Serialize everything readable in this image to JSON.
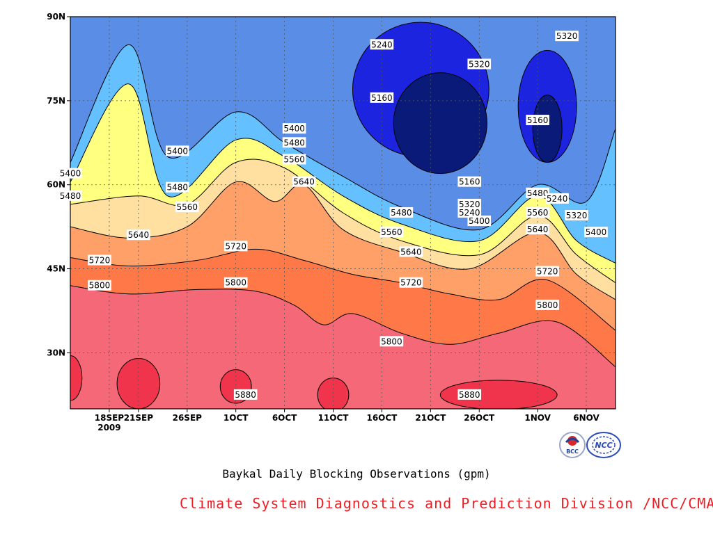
{
  "chart_data": {
    "type": "heatmap",
    "title": "",
    "xlabel": "",
    "ylabel": "",
    "x_range": [
      "2009-09-14",
      "2009-11-09"
    ],
    "ylim": [
      20,
      90
    ],
    "x_ticks": [
      {
        "date": "2009-09-18",
        "label": "18SEP",
        "sublabel": "2009"
      },
      {
        "date": "2009-09-21",
        "label": "21SEP"
      },
      {
        "date": "2009-09-26",
        "label": "26SEP"
      },
      {
        "date": "2009-10-01",
        "label": "1OCT"
      },
      {
        "date": "2009-10-06",
        "label": "6OCT"
      },
      {
        "date": "2009-10-11",
        "label": "11OCT"
      },
      {
        "date": "2009-10-16",
        "label": "16OCT"
      },
      {
        "date": "2009-10-21",
        "label": "21OCT"
      },
      {
        "date": "2009-10-26",
        "label": "26OCT"
      },
      {
        "date": "2009-11-01",
        "label": "1NOV"
      },
      {
        "date": "2009-11-06",
        "label": "6NOV"
      }
    ],
    "y_ticks": [
      {
        "value": 30,
        "label": "30N"
      },
      {
        "value": 45,
        "label": "45N"
      },
      {
        "value": 60,
        "label": "60N"
      },
      {
        "value": 75,
        "label": "75N"
      },
      {
        "value": 90,
        "label": "90N"
      }
    ],
    "grid": true,
    "contour_levels": [
      5160,
      5240,
      5320,
      5400,
      5480,
      5560,
      5640,
      5720,
      5800,
      5880
    ],
    "level_colors": [
      "#0a1a78",
      "#1c24e0",
      "#3c48e6",
      "#5a8ee6",
      "#64c0ff",
      "#ffff80",
      "#ffe0a0",
      "#ffa068",
      "#ff7848",
      "#f46878",
      "#f0344c"
    ],
    "contours": [
      {
        "level": 5800,
        "points": [
          [
            "2009-09-14",
            42
          ],
          [
            "2009-09-20",
            40.5
          ],
          [
            "2009-09-27",
            41.3
          ],
          [
            "2009-10-03",
            41
          ],
          [
            "2009-10-07",
            38.5
          ],
          [
            "2009-10-10",
            35
          ],
          [
            "2009-10-13",
            37
          ],
          [
            "2009-10-18",
            33.5
          ],
          [
            "2009-10-23",
            31.5
          ],
          [
            "2009-10-28",
            33.5
          ],
          [
            "2009-11-03",
            35.5
          ],
          [
            "2009-11-09",
            27.5
          ]
        ]
      },
      {
        "level": 5720,
        "points": [
          [
            "2009-09-14",
            47
          ],
          [
            "2009-09-20",
            45.5
          ],
          [
            "2009-09-27",
            46.5
          ],
          [
            "2009-10-03",
            48.5
          ],
          [
            "2009-10-08",
            46.5
          ],
          [
            "2009-10-13",
            44
          ],
          [
            "2009-10-18",
            42.5
          ],
          [
            "2009-10-23",
            40.5
          ],
          [
            "2009-10-28",
            39.5
          ],
          [
            "2009-11-02",
            43
          ],
          [
            "2009-11-09",
            34
          ]
        ]
      },
      {
        "level": 5640,
        "points": [
          [
            "2009-09-14",
            52.5
          ],
          [
            "2009-09-20",
            50.5
          ],
          [
            "2009-09-26",
            52.5
          ],
          [
            "2009-10-01",
            60.5
          ],
          [
            "2009-10-05",
            57
          ],
          [
            "2009-10-08",
            60
          ],
          [
            "2009-10-12",
            52
          ],
          [
            "2009-10-18",
            48
          ],
          [
            "2009-10-25",
            45
          ],
          [
            "2009-11-01",
            51.5
          ],
          [
            "2009-11-05",
            44
          ],
          [
            "2009-11-09",
            39.5
          ]
        ]
      },
      {
        "level": 5560,
        "points": [
          [
            "2009-09-14",
            56.5
          ],
          [
            "2009-09-21",
            58
          ],
          [
            "2009-09-26",
            56.5
          ],
          [
            "2009-10-01",
            64
          ],
          [
            "2009-10-06",
            63
          ],
          [
            "2009-10-12",
            55
          ],
          [
            "2009-10-18",
            50
          ],
          [
            "2009-10-26",
            47.5
          ],
          [
            "2009-11-01",
            54.5
          ],
          [
            "2009-11-05",
            47.5
          ],
          [
            "2009-11-09",
            42.5
          ]
        ]
      },
      {
        "level": 5480,
        "points": [
          [
            "2009-09-14",
            60.5
          ],
          [
            "2009-09-20",
            78
          ],
          [
            "2009-09-24",
            58
          ],
          [
            "2009-10-01",
            68
          ],
          [
            "2009-10-06",
            65
          ],
          [
            "2009-10-12",
            58
          ],
          [
            "2009-10-18",
            53
          ],
          [
            "2009-10-26",
            50
          ],
          [
            "2009-11-01",
            58
          ],
          [
            "2009-11-05",
            50
          ],
          [
            "2009-11-09",
            46
          ]
        ]
      },
      {
        "level": 5400,
        "points": [
          [
            "2009-09-14",
            64
          ],
          [
            "2009-09-20",
            85
          ],
          [
            "2009-09-24",
            65
          ],
          [
            "2009-10-01",
            73
          ],
          [
            "2009-10-06",
            67.5
          ],
          [
            "2009-10-12",
            61.5
          ],
          [
            "2009-10-18",
            56
          ],
          [
            "2009-10-26",
            52
          ],
          [
            "2009-11-01",
            60
          ],
          [
            "2009-11-06",
            57
          ],
          [
            "2009-11-09",
            70
          ]
        ]
      }
    ],
    "labels": [
      {
        "level": 5400,
        "x": "2009-09-14",
        "y": 62
      },
      {
        "level": 5400,
        "x": "2009-09-25",
        "y": 66
      },
      {
        "level": 5400,
        "x": "2009-10-07",
        "y": 70
      },
      {
        "level": 5400,
        "x": "2009-10-26",
        "y": 53.5
      },
      {
        "level": 5400,
        "x": "2009-11-07",
        "y": 51.5
      },
      {
        "level": 5480,
        "x": "2009-09-14",
        "y": 58
      },
      {
        "level": 5480,
        "x": "2009-09-25",
        "y": 59.5
      },
      {
        "level": 5480,
        "x": "2009-10-07",
        "y": 67.5
      },
      {
        "level": 5480,
        "x": "2009-10-18",
        "y": 55
      },
      {
        "level": 5480,
        "x": "2009-11-01",
        "y": 58.5
      },
      {
        "level": 5560,
        "x": "2009-09-26",
        "y": 56
      },
      {
        "level": 5560,
        "x": "2009-10-07",
        "y": 64.5
      },
      {
        "level": 5560,
        "x": "2009-10-17",
        "y": 51.5
      },
      {
        "level": 5560,
        "x": "2009-11-01",
        "y": 55
      },
      {
        "level": 5640,
        "x": "2009-09-21",
        "y": 51
      },
      {
        "level": 5640,
        "x": "2009-10-08",
        "y": 60.5
      },
      {
        "level": 5640,
        "x": "2009-10-19",
        "y": 48
      },
      {
        "level": 5640,
        "x": "2009-11-01",
        "y": 52
      },
      {
        "level": 5720,
        "x": "2009-09-17",
        "y": 46.5
      },
      {
        "level": 5720,
        "x": "2009-10-01",
        "y": 49
      },
      {
        "level": 5720,
        "x": "2009-10-19",
        "y": 42.5
      },
      {
        "level": 5720,
        "x": "2009-11-02",
        "y": 44.5
      },
      {
        "level": 5800,
        "x": "2009-09-17",
        "y": 42
      },
      {
        "level": 5800,
        "x": "2009-10-01",
        "y": 42.5
      },
      {
        "level": 5800,
        "x": "2009-10-17",
        "y": 32
      },
      {
        "level": 5800,
        "x": "2009-11-02",
        "y": 38.5
      },
      {
        "level": 5880,
        "x": "2009-10-02",
        "y": 22.5
      },
      {
        "level": 5880,
        "x": "2009-10-25",
        "y": 22.5
      },
      {
        "level": 5240,
        "x": "2009-10-16",
        "y": 85
      },
      {
        "level": 5240,
        "x": "2009-10-25",
        "y": 55
      },
      {
        "level": 5240,
        "x": "2009-11-03",
        "y": 57.5
      },
      {
        "level": 5320,
        "x": "2009-10-26",
        "y": 81.5
      },
      {
        "level": 5320,
        "x": "2009-11-04",
        "y": 86.5
      },
      {
        "level": 5320,
        "x": "2009-10-25",
        "y": 56.5
      },
      {
        "level": 5320,
        "x": "2009-11-05",
        "y": 54.5
      },
      {
        "level": 5160,
        "x": "2009-10-16",
        "y": 75.5
      },
      {
        "level": 5160,
        "x": "2009-10-25",
        "y": 60.5
      },
      {
        "level": 5160,
        "x": "2009-11-01",
        "y": 71.5
      }
    ],
    "high_cells_5880": [
      {
        "center": [
          "2009-09-14",
          25.5
        ],
        "rx_days": 1.2,
        "ry_deg": 4
      },
      {
        "center": [
          "2009-09-21",
          24.5
        ],
        "rx_days": 2.2,
        "ry_deg": 4.5
      },
      {
        "center": [
          "2009-10-01",
          24
        ],
        "rx_days": 1.6,
        "ry_deg": 3
      },
      {
        "center": [
          "2009-10-11",
          22.5
        ],
        "rx_days": 1.6,
        "ry_deg": 3
      },
      {
        "center": [
          "2009-10-28",
          22.5
        ],
        "rx_days": 6,
        "ry_deg": 2.6
      }
    ],
    "low_cells": [
      {
        "level": 5240,
        "center": [
          "2009-10-20",
          77
        ],
        "rx_days": 7,
        "ry_deg": 12
      },
      {
        "level": 5160,
        "center": [
          "2009-10-22",
          71
        ],
        "rx_days": 4.8,
        "ry_deg": 9
      },
      {
        "level": 5240,
        "center": [
          "2009-11-02",
          74
        ],
        "rx_days": 3,
        "ry_deg": 10
      },
      {
        "level": 5160,
        "center": [
          "2009-11-02",
          70
        ],
        "rx_days": 1.5,
        "ry_deg": 6
      }
    ]
  },
  "caption": {
    "title": "Baykal Daily Blocking Observations (gpm)",
    "credit": "Climate System Diagnostics and Prediction Division /NCC/CMA",
    "logo_left_text": "BCC",
    "logo_right_text": "NCC"
  }
}
